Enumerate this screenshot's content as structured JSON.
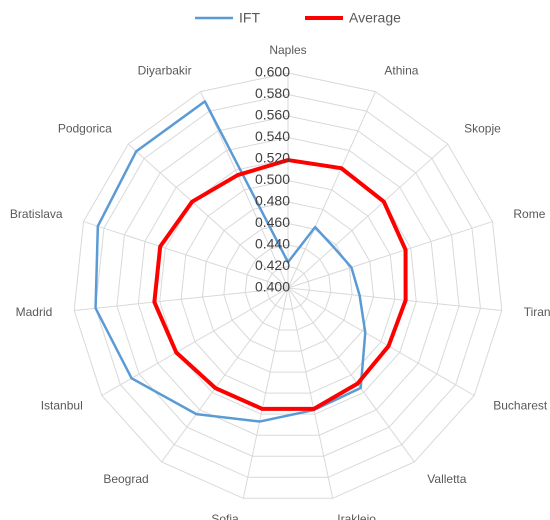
{
  "chart_data": {
    "type": "radar",
    "categories": [
      "Naples",
      "Athina",
      "Skopje",
      "Rome",
      "Tirana",
      "Bucharest",
      "Valletta",
      "Irakleio",
      "Sofia",
      "Beograd",
      "Istanbul",
      "Madrid",
      "Bratislava",
      "Podgorica",
      "Diyarbakir"
    ],
    "series": [
      {
        "name": "IFT",
        "color": "#5b9bd5",
        "values": [
          0.424,
          0.462,
          0.457,
          0.462,
          0.467,
          0.483,
          0.515,
          0.516,
          0.527,
          0.545,
          0.568,
          0.58,
          0.586,
          0.59,
          0.59
        ]
      },
      {
        "name": "Average",
        "color": "#ff0000",
        "values": [
          0.519,
          0.522,
          0.52,
          0.515,
          0.51,
          0.508,
          0.51,
          0.515,
          0.515,
          0.515,
          0.52,
          0.525,
          0.525,
          0.52,
          0.515
        ]
      }
    ],
    "ylim": [
      0.4,
      0.6
    ],
    "yticks": [
      {
        "value": 0.4,
        "label": "0.400"
      },
      {
        "value": 0.42,
        "label": "0.420"
      },
      {
        "value": 0.44,
        "label": "0.440"
      },
      {
        "value": 0.46,
        "label": "0.460"
      },
      {
        "value": 0.48,
        "label": "0.480"
      },
      {
        "value": 0.5,
        "label": "0.500"
      },
      {
        "value": 0.52,
        "label": "0.520"
      },
      {
        "value": 0.54,
        "label": "0.540"
      },
      {
        "value": 0.56,
        "label": "0.560"
      },
      {
        "value": 0.58,
        "label": "0.580"
      },
      {
        "value": 0.6,
        "label": "0.600"
      }
    ],
    "grid": true,
    "legend": "top"
  }
}
